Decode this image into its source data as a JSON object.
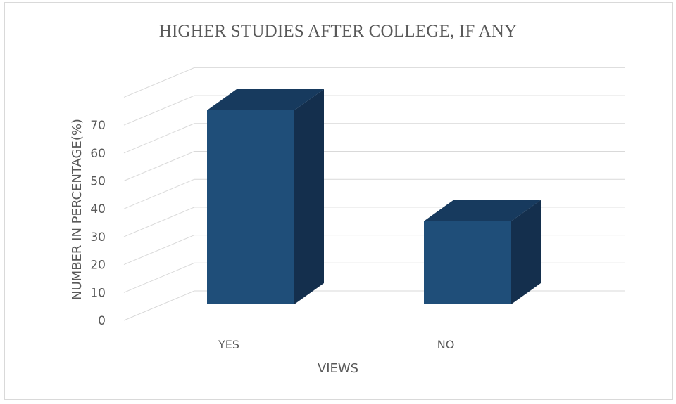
{
  "chart_data": {
    "type": "bar",
    "title": "HIGHER STUDIES AFTER COLLEGE, IF ANY",
    "xlabel": "VIEWS",
    "ylabel": "NUMBER IN PERCENTAGE(%)",
    "categories": [
      "YES",
      "NO"
    ],
    "values": [
      70,
      30
    ],
    "ylim": [
      0,
      70
    ],
    "yticks": [
      0,
      10,
      20,
      30,
      40,
      50,
      60,
      70
    ],
    "grid": true,
    "three_d": true,
    "colors": {
      "bar_front": "#1f4e79",
      "bar_top": "#173a5e",
      "bar_side": "#142f4d",
      "grid": "#d9d9d9",
      "text": "#595959"
    }
  }
}
